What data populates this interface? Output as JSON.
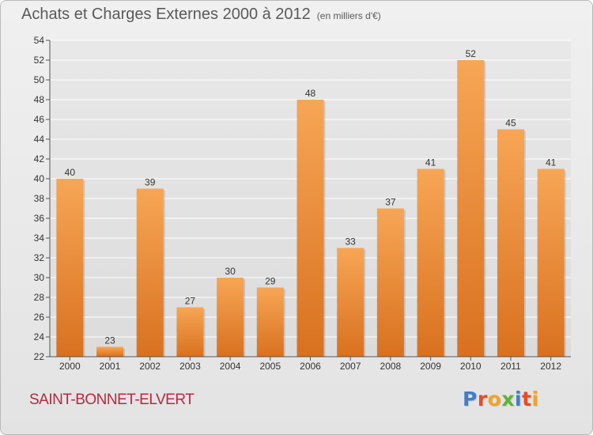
{
  "header": {
    "title": "Achats et Charges Externes 2000 à 2012",
    "unit": "(en milliers d'€)"
  },
  "footer": {
    "commune": "SAINT-BONNET-ELVERT",
    "brand": "Proxiti",
    "brand_colors": [
      "#3f7fc9",
      "#e84c24",
      "#f4a323",
      "#5cb531",
      "#3f7fc9",
      "#e84c24",
      "#f4a323"
    ]
  },
  "colors": {
    "bar_top": "#f7a655",
    "bar_bottom": "#d8711f",
    "grid": "#ffffff",
    "axis": "#555555",
    "label": "#333333",
    "commune": "#b22b40"
  },
  "chart_data": {
    "type": "bar",
    "title": "Achats et Charges Externes 2000 à 2012",
    "subtitle": "(en milliers d'€)",
    "xlabel": "",
    "ylabel": "",
    "categories": [
      "2000",
      "2001",
      "2002",
      "2003",
      "2004",
      "2005",
      "2006",
      "2007",
      "2008",
      "2009",
      "2010",
      "2011",
      "2012"
    ],
    "values": [
      40,
      23,
      39,
      27,
      30,
      29,
      48,
      33,
      37,
      41,
      52,
      45,
      41
    ],
    "ylim": [
      22,
      54
    ],
    "yticks": [
      22,
      24,
      26,
      28,
      30,
      32,
      34,
      36,
      38,
      40,
      42,
      44,
      46,
      48,
      50,
      52,
      54
    ],
    "grid": true,
    "data_labels": true
  }
}
